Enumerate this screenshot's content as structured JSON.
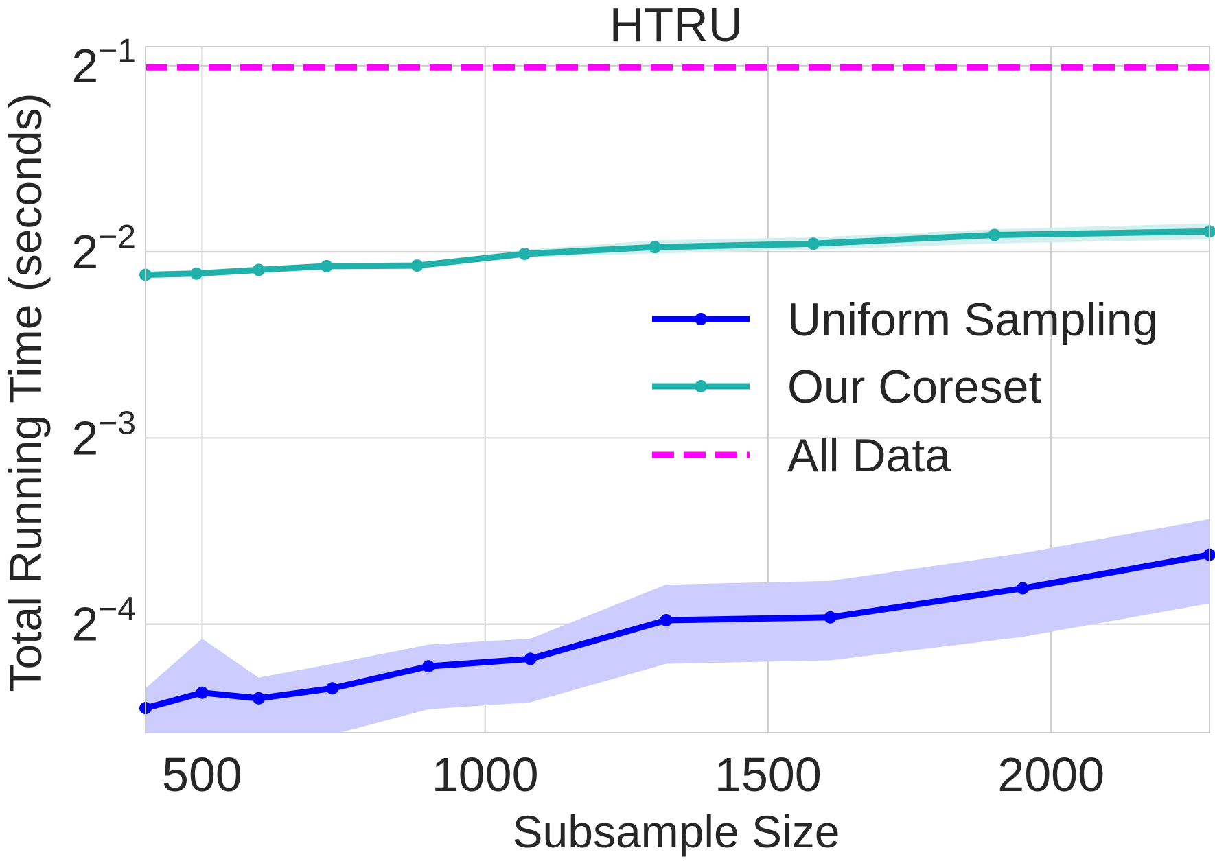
{
  "chart_data": {
    "type": "line",
    "title": "HTRU",
    "xlabel": "Subsample Size",
    "ylabel": "Total Running Time (seconds)",
    "xlim": [
      400,
      2280
    ],
    "x_ticks": [
      500,
      1000,
      1500,
      2000
    ],
    "x_tick_labels": [
      "500",
      "1000",
      "1500",
      "2000"
    ],
    "y_scale": "log2",
    "ylim": [
      0.0417,
      0.537
    ],
    "y_ticks": [
      0.0625,
      0.125,
      0.25,
      0.5
    ],
    "y_tick_labels": [
      {
        "base": "2",
        "exp": "−4"
      },
      {
        "base": "2",
        "exp": "−3"
      },
      {
        "base": "2",
        "exp": "−2"
      },
      {
        "base": "2",
        "exp": "−1"
      }
    ],
    "grid": true,
    "legend_position": "center-right",
    "series": [
      {
        "name": "Uniform Sampling",
        "color": "#0000ff",
        "band_color": "#ccccff",
        "style": "solid-markers",
        "x": [
          400,
          500,
          600,
          730,
          900,
          1080,
          1320,
          1610,
          1950,
          2280
        ],
        "y": [
          0.0457,
          0.0484,
          0.0474,
          0.0492,
          0.0534,
          0.0549,
          0.0634,
          0.0641,
          0.0714,
          0.0809
        ],
        "lower": [
          0.0392,
          0.0352,
          0.0402,
          0.0414,
          0.0455,
          0.0467,
          0.0539,
          0.0546,
          0.0596,
          0.0675
        ],
        "upper": [
          0.0492,
          0.0592,
          0.0512,
          0.0539,
          0.0579,
          0.0592,
          0.0724,
          0.0734,
          0.0814,
          0.0924
        ]
      },
      {
        "name": "Our Coreset",
        "color": "#20b2aa",
        "band_color": "#d2f0ee",
        "style": "solid-markers",
        "x": [
          400,
          490,
          600,
          720,
          880,
          1070,
          1300,
          1580,
          1900,
          2280
        ],
        "y": [
          0.2296,
          0.2306,
          0.2338,
          0.2371,
          0.2376,
          0.2482,
          0.2545,
          0.2577,
          0.2663,
          0.2698
        ],
        "lower": [
          0.227,
          0.228,
          0.231,
          0.2345,
          0.235,
          0.245,
          0.2485,
          0.252,
          0.258,
          0.262
        ],
        "upper": [
          0.2322,
          0.2335,
          0.2365,
          0.2398,
          0.2402,
          0.252,
          0.261,
          0.264,
          0.272,
          0.278
        ]
      },
      {
        "name": "All Data",
        "color": "#ff00ff",
        "style": "dashed",
        "x": [
          400,
          2280
        ],
        "y": [
          0.497,
          0.497
        ]
      }
    ]
  }
}
